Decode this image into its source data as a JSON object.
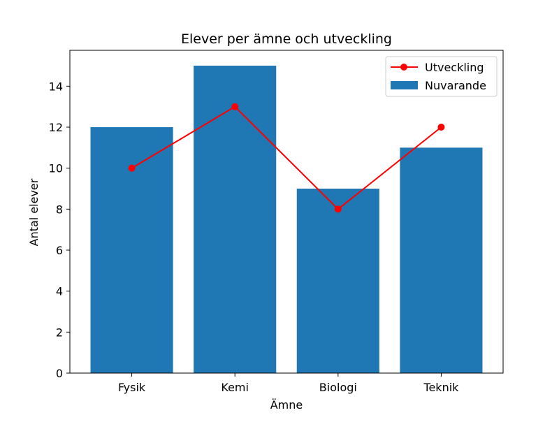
{
  "chart_data": {
    "type": "bar",
    "title": "Elever per ämne och utveckling",
    "xlabel": "Ämne",
    "ylabel": "Antal elever",
    "categories": [
      "Fysik",
      "Kemi",
      "Biologi",
      "Teknik"
    ],
    "ylim": [
      0,
      15.75
    ],
    "yticks": [
      0,
      2,
      4,
      6,
      8,
      10,
      12,
      14
    ],
    "grid": false,
    "legend_position": "top-right",
    "series": [
      {
        "name": "Nuvarande",
        "type": "bar",
        "values": [
          12,
          15,
          9,
          11
        ],
        "color": "#1f77b4"
      },
      {
        "name": "Utveckling",
        "type": "line",
        "marker": "circle",
        "values": [
          10,
          13,
          8,
          12
        ],
        "color": "#ff0000"
      }
    ]
  }
}
